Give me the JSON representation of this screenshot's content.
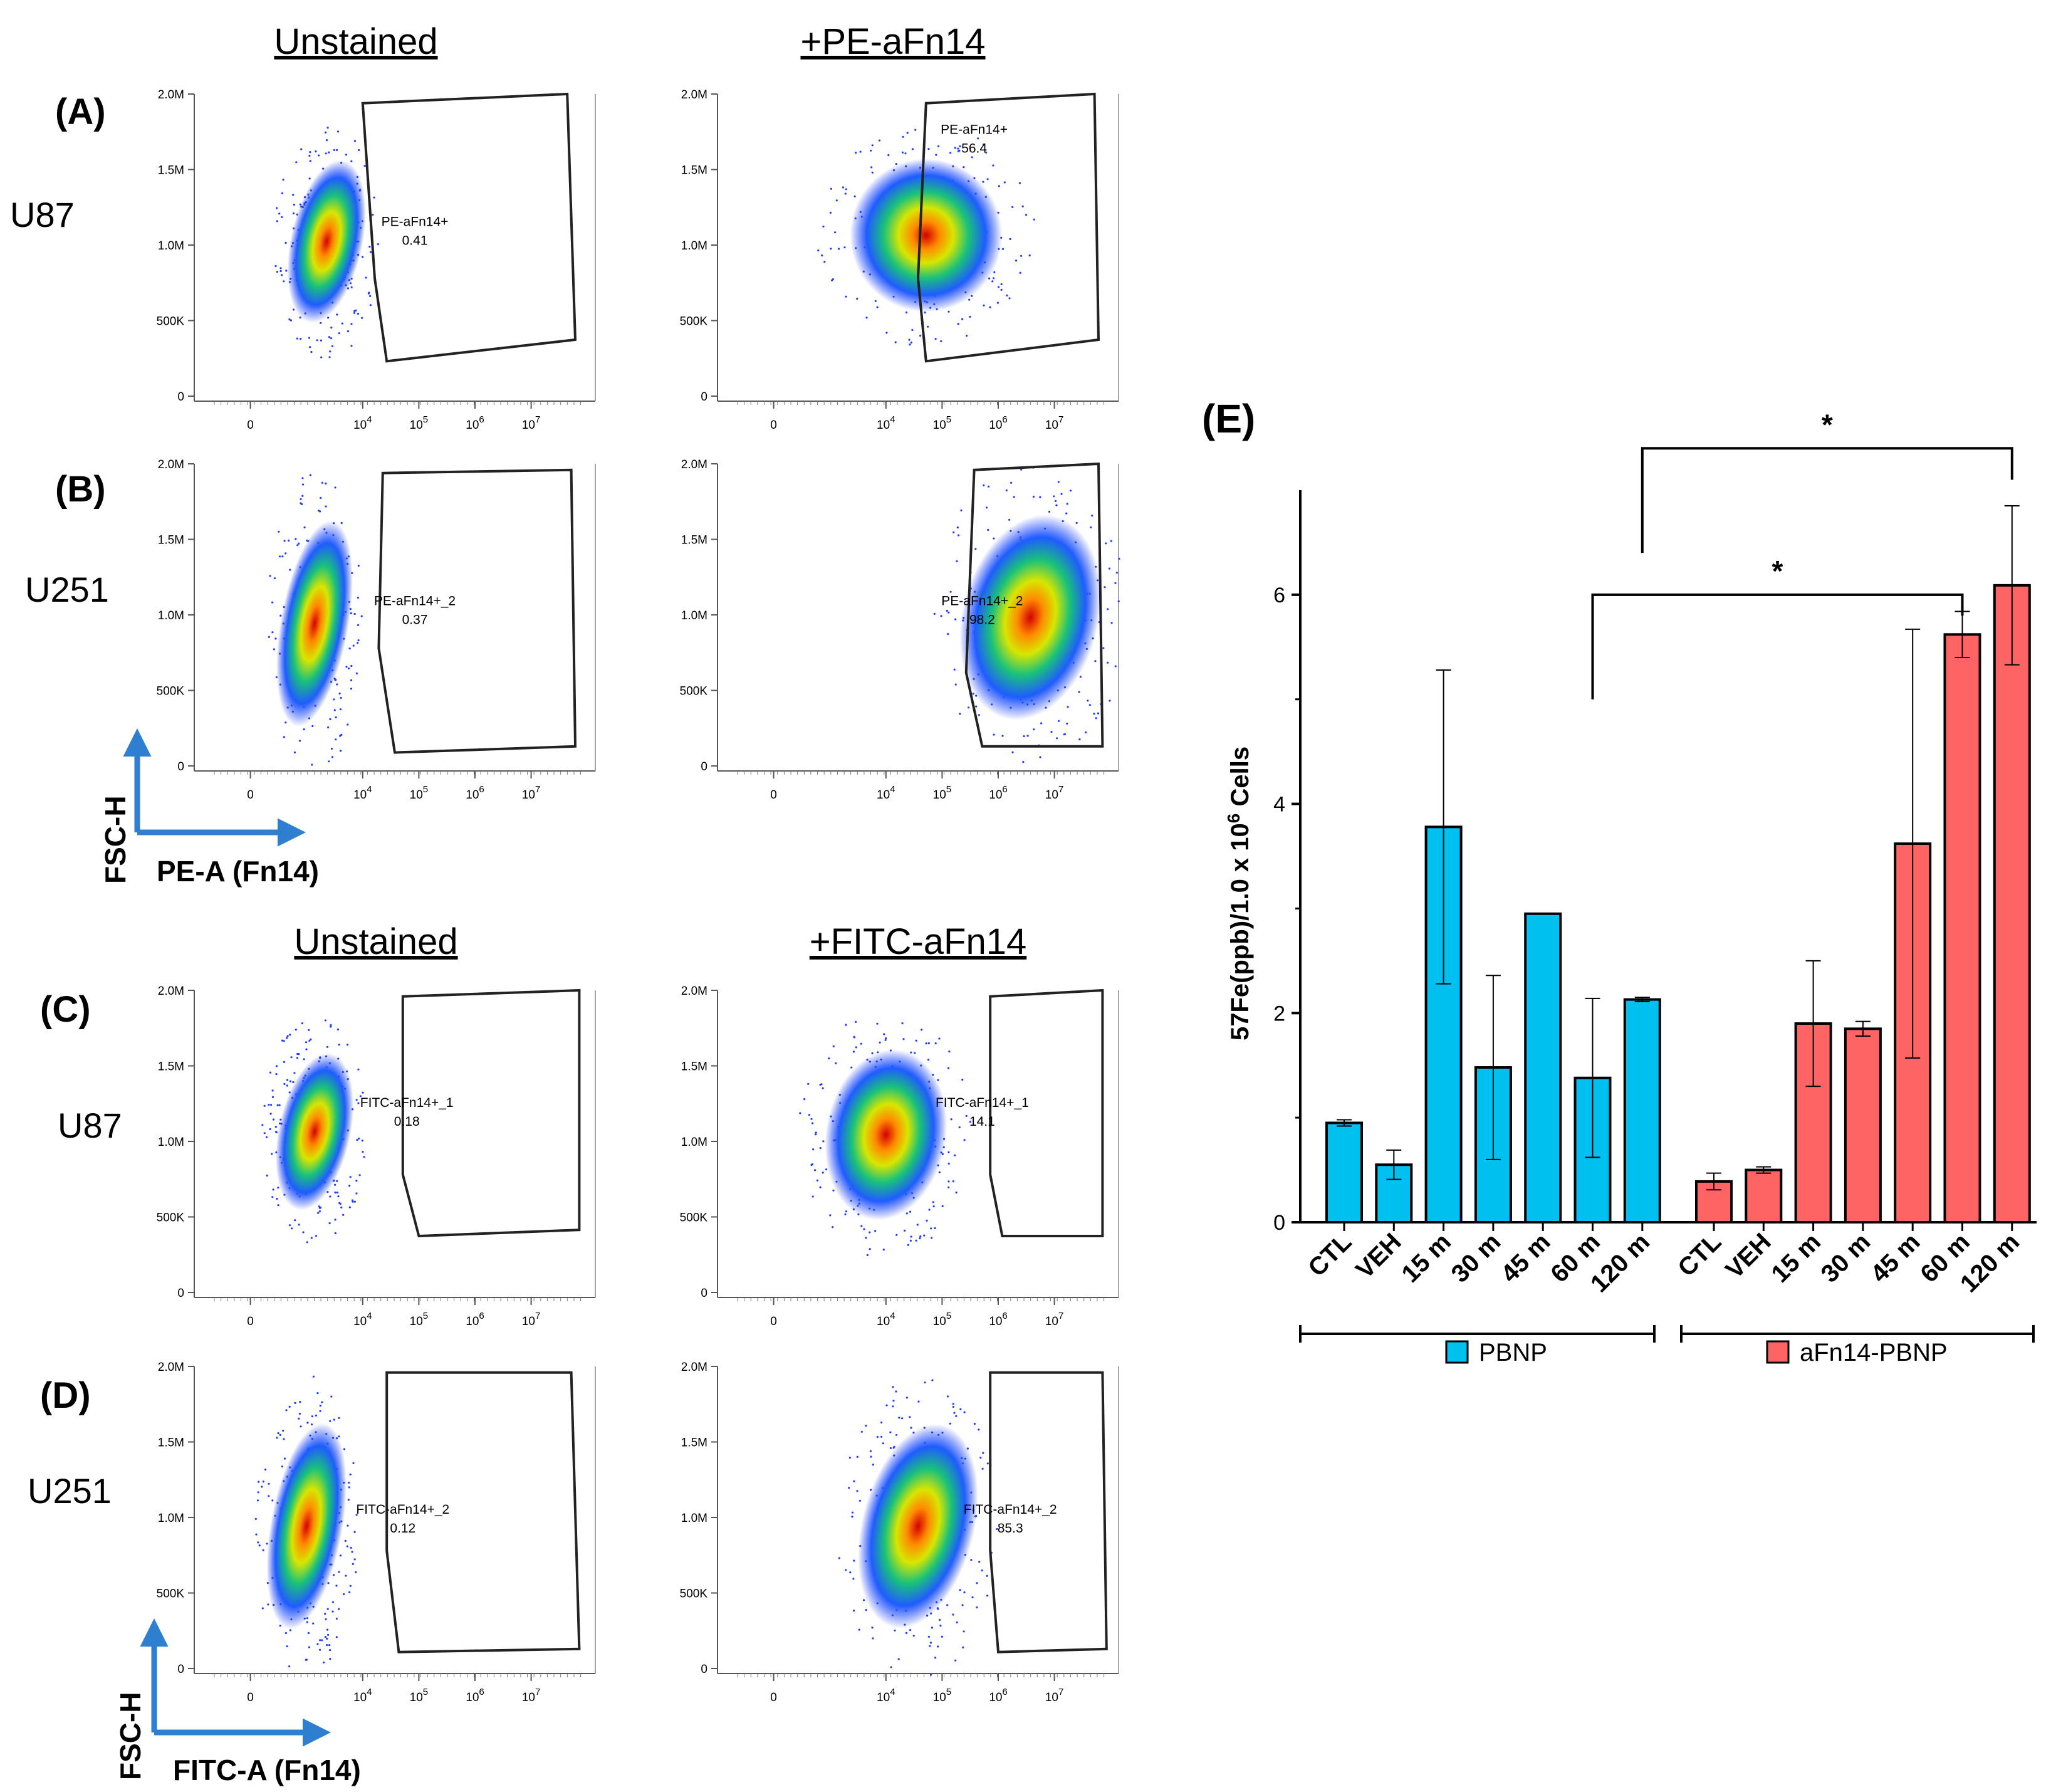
{
  "colors": {
    "pbnp": "#00c0ef",
    "afn14": "#ff6464",
    "arrow": "#2f7fd0",
    "axis": "#000000"
  },
  "flow": {
    "top_headers": [
      "Unstained",
      "+PE-aFn14"
    ],
    "bottom_headers": [
      "Unstained",
      "+FITC-aFn14"
    ],
    "y_ticks": [
      "2.0M",
      "1.5M",
      "1.0M",
      "500K",
      "0"
    ],
    "x_ticks": [
      "0",
      "10",
      "10",
      "10",
      "10"
    ],
    "x_tick_exponents": [
      "",
      "4",
      "5",
      "6",
      "7"
    ],
    "panels": [
      {
        "letter": "(A)",
        "cell_line": "U87",
        "plots": [
          {
            "gate": "PE-aFn14+",
            "value": "0.41"
          },
          {
            "gate": "PE-aFn14+",
            "value": "56.4"
          }
        ]
      },
      {
        "letter": "(B)",
        "cell_line": "U251",
        "plots": [
          {
            "gate": "PE-aFn14+_2",
            "value": "0.37"
          },
          {
            "gate": "PE-aFn14+_2",
            "value": "98.2"
          }
        ]
      },
      {
        "letter": "(C)",
        "cell_line": "U87",
        "plots": [
          {
            "gate": "FITC-aFn14+_1",
            "value": "0.18"
          },
          {
            "gate": "FITC-aFn14+_1",
            "value": "14.1"
          }
        ]
      },
      {
        "letter": "(D)",
        "cell_line": "U251",
        "plots": [
          {
            "gate": "FITC-aFn14+_2",
            "value": "0.12"
          },
          {
            "gate": "FITC-aFn14+_2",
            "value": "85.3"
          }
        ]
      }
    ],
    "axis_labels": {
      "y": "FSC-H",
      "x_pe": "PE-A (Fn14)",
      "x_fitc": "FITC-A (Fn14)"
    }
  },
  "chart_data": {
    "type": "bar",
    "panel_letter": "(E)",
    "ylabel": "57Fe(ppb)/1.0 x 10^6 Cells",
    "ylabel_main": "57Fe(ppb)/1.0 x 10",
    "ylabel_exp": "6",
    "ylabel_tail": " Cells",
    "ylim": [
      0,
      7
    ],
    "yticks": [
      0,
      2,
      4,
      6
    ],
    "categories": [
      "CTL",
      "VEH",
      "15 m",
      "30 m",
      "45 m",
      "60 m",
      "120 m"
    ],
    "series": [
      {
        "name": "PBNP",
        "values": [
          0.95,
          0.55,
          3.78,
          1.48,
          2.95,
          1.38,
          2.13
        ],
        "errors": [
          0.03,
          0.14,
          1.5,
          0.88,
          0,
          0.76,
          0.02
        ]
      },
      {
        "name": "aFn14-PBNP",
        "values": [
          0.39,
          0.5,
          1.9,
          1.85,
          3.62,
          5.62,
          6.09
        ],
        "errors": [
          0.08,
          0.03,
          0.6,
          0.07,
          2.05,
          0.22,
          0.76
        ]
      }
    ],
    "significance": [
      {
        "from": "PBNP 60 m",
        "to": "aFn14-PBNP 60 m",
        "label": "*"
      },
      {
        "from": "PBNP 120 m",
        "to": "aFn14-PBNP 120 m",
        "label": "*"
      }
    ],
    "legend": [
      "PBNP",
      "aFn14-PBNP"
    ]
  }
}
